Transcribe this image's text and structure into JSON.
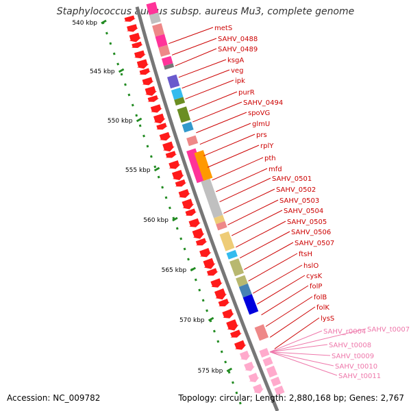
{
  "title": "Staphylococcus aureus subsp. aureus Mu3, complete genome",
  "footer": {
    "accession": "Accession: NC_009782",
    "stats": "Topology: circular; Length: 2,880,168 bp; Genes: 2,767"
  },
  "colors": {
    "ruler": "#228B22",
    "backbone": "#777777",
    "gene_label": "#cc0000",
    "rna_label": "#ee77aa"
  },
  "ruler_ticks": [
    "540 kbp",
    "545 kbp",
    "550 kbp",
    "555 kbp",
    "560 kbp",
    "565 kbp",
    "570 kbp",
    "575 kbp"
  ],
  "gene_labels": [
    "metS",
    "SAHV_0488",
    "SAHV_0489",
    "ksgA",
    "veg",
    "ipk",
    "purR",
    "SAHV_0494",
    "spoVG",
    "glmU",
    "prs",
    "rplY",
    "pth",
    "mfd",
    "SAHV_0501",
    "SAHV_0502",
    "SAHV_0503",
    "SAHV_0504",
    "SAHV_0505",
    "SAHV_0506",
    "SAHV_0507",
    "ftsH",
    "hslO",
    "cysK",
    "folP",
    "folB",
    "folK",
    "lysS"
  ],
  "rna_labels": [
    "SAHV_r0004",
    "SAHV_t0007",
    "SAHV_t0008",
    "SAHV_t0009",
    "SAHV_t0010",
    "SAHV_t0011"
  ],
  "cog_colors": [
    "#c0c0c0",
    "#ff3399",
    "#ee8888",
    "#6a5acd",
    "#33bbee",
    "#6b8e23",
    "#3399cc",
    "#ff9900",
    "#eecc77",
    "#b8b870",
    "#4682b4",
    "#0000dd",
    "#bb9999"
  ]
}
